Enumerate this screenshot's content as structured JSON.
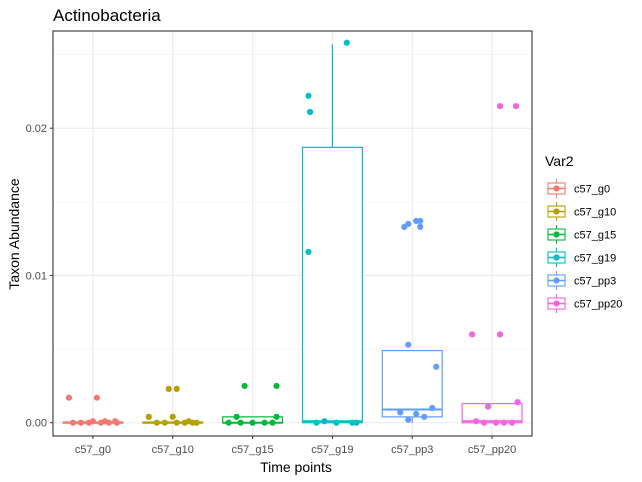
{
  "chart_data": {
    "type": "boxplot",
    "title": "Actinobacteria",
    "xlabel": "Time points",
    "ylabel": "Taxon Abundance",
    "ylim": [
      -0.0009,
      0.0266
    ],
    "yticks": [
      0,
      0.01,
      0.02
    ],
    "ytick_labels": [
      "0.00",
      "0.01",
      "0.02"
    ],
    "grid": true,
    "legend_title": "Var2",
    "legend_position": "right",
    "series": [
      {
        "name": "c57_g0",
        "color": "#F8766D",
        "box": {
          "q1": 0.0,
          "median": 0.0,
          "q3": 5e-05,
          "whisker_low": 0.0,
          "whisker_high": 0.0001
        },
        "points": [
          0.0017,
          0.0017,
          0.0,
          0.0,
          0.0,
          0.0,
          0.0,
          0.0,
          0.0001,
          0.0001,
          0.0001
        ],
        "jitter": [
          -0.3,
          0.05,
          -0.15,
          0.1,
          -0.05,
          0.2,
          0.3,
          -0.25,
          0.0,
          0.15,
          0.28
        ]
      },
      {
        "name": "c57_g10",
        "color": "#B79F00",
        "box": {
          "q1": 0.0,
          "median": 0.0,
          "q3": 5e-05,
          "whisker_low": 0.0,
          "whisker_high": 0.0001
        },
        "points": [
          0.0023,
          0.0023,
          0.0004,
          0.0004,
          0.0,
          0.0,
          0.0,
          0.0,
          0.0,
          0.0,
          0.0001
        ],
        "jitter": [
          -0.05,
          0.05,
          -0.3,
          0.0,
          -0.2,
          -0.1,
          0.05,
          0.15,
          0.25,
          0.3,
          0.2
        ]
      },
      {
        "name": "c57_g15",
        "color": "#00BA38",
        "box": {
          "q1": 0.0,
          "median": 0.0,
          "q3": 0.0004,
          "whisker_low": 0.0,
          "whisker_high": 0.0004
        },
        "points": [
          0.0025,
          0.0025,
          0.0004,
          0.0004,
          0.0,
          0.0,
          0.0,
          0.0,
          0.0
        ],
        "jitter": [
          -0.1,
          0.3,
          -0.2,
          0.3,
          -0.3,
          -0.15,
          0.0,
          0.15,
          0.25
        ]
      },
      {
        "name": "c57_g19",
        "color": "#00BFC4",
        "box": {
          "q1": 0.0,
          "median": 0.0001,
          "q3": 0.0187,
          "whisker_low": 0.0,
          "whisker_high": 0.0257
        },
        "points": [
          0.0222,
          0.0211,
          0.0258,
          0.0116,
          0.0001,
          0.0,
          0.0,
          0.0,
          0.0
        ],
        "jitter": [
          -0.3,
          -0.28,
          0.18,
          -0.3,
          -0.1,
          0.05,
          0.25,
          0.3,
          -0.2
        ]
      },
      {
        "name": "c57_pp3",
        "color": "#619CFF",
        "box": {
          "q1": 0.0004,
          "median": 0.0009,
          "q3": 0.0049,
          "whisker_low": 0.0,
          "whisker_high": 0.0049
        },
        "points": [
          0.0133,
          0.0135,
          0.0137,
          0.0137,
          0.0133,
          0.0053,
          0.0038,
          0.001,
          0.0007,
          0.0006,
          0.0004,
          0.0002
        ],
        "jitter": [
          -0.1,
          -0.05,
          0.05,
          0.1,
          0.1,
          -0.05,
          0.3,
          0.25,
          -0.15,
          0.05,
          0.15,
          -0.05
        ]
      },
      {
        "name": "c57_pp20",
        "color": "#F564E3",
        "box": {
          "q1": 0.0,
          "median": 0.0001,
          "q3": 0.0013,
          "whisker_low": 0.0,
          "whisker_high": 0.0013
        },
        "points": [
          0.0215,
          0.0215,
          0.006,
          0.006,
          0.0014,
          0.0011,
          0.0001,
          0.0,
          0.0,
          0.0,
          0.0
        ],
        "jitter": [
          0.1,
          0.3,
          -0.25,
          0.1,
          0.32,
          -0.05,
          -0.2,
          -0.1,
          0.05,
          0.15,
          0.25
        ]
      }
    ]
  }
}
